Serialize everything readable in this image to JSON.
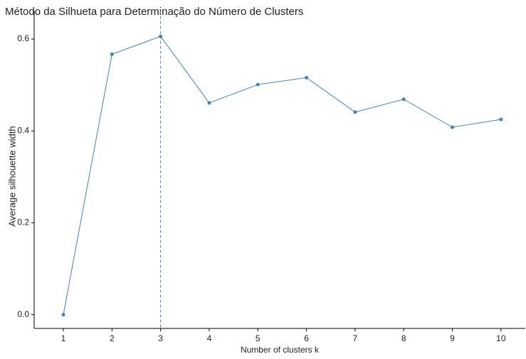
{
  "chart_data": {
    "type": "line",
    "title": "Método da Silhueta para Determinação do Número de Clusters",
    "xlabel": "Number of clusters k",
    "ylabel": "Average silhouette width",
    "x": [
      1,
      2,
      3,
      4,
      5,
      6,
      7,
      8,
      9,
      10
    ],
    "series": [
      {
        "name": "silhouette",
        "color": "#4682b4",
        "values": [
          0,
          0.567,
          0.606,
          0.461,
          0.501,
          0.516,
          0.441,
          0.469,
          0.408,
          0.425
        ]
      }
    ],
    "xlim": [
      0.4,
      10.5
    ],
    "xticks": [
      1,
      2,
      3,
      4,
      5,
      6,
      7,
      8,
      9,
      10
    ],
    "ylim": [
      -0.03,
      0.63
    ],
    "yticks": [
      {
        "value": 0,
        "label": "0.0"
      },
      {
        "value": 0.2,
        "label": "0.2"
      },
      {
        "value": 0.4,
        "label": "0.4"
      },
      {
        "value": 0.6,
        "label": "0.6"
      }
    ],
    "vline": 3,
    "vline_color": "#4682b4"
  }
}
